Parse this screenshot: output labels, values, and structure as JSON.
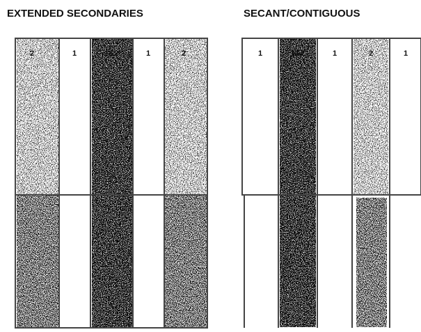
{
  "left": {
    "title": "EXTENDED SECONDARIES",
    "pile_labels": [
      "2",
      "1",
      "1&2",
      "1",
      "2"
    ]
  },
  "right": {
    "title": "SECANT/CONTIGUOUS",
    "pile_labels": [
      "1",
      "1&2",
      "1",
      "2",
      "1"
    ]
  }
}
